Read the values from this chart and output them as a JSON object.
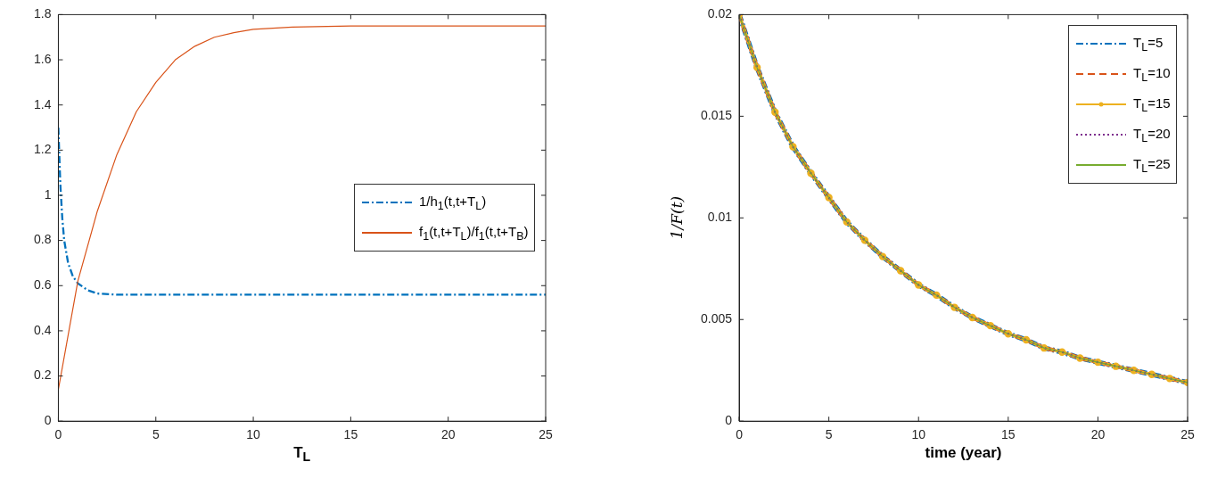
{
  "chart_data": [
    {
      "type": "line",
      "xlabel": "T$_{L}$",
      "xlim": [
        0,
        25
      ],
      "xticks": [
        0,
        5,
        10,
        15,
        20,
        25
      ],
      "ylim": [
        0,
        1.8
      ],
      "yticks": [
        0,
        0.2,
        0.4,
        0.6,
        0.8,
        1,
        1.2,
        1.4,
        1.6,
        1.8
      ],
      "grid": false,
      "legend": "right",
      "marker": "none",
      "series": [
        {
          "name": "1/h$_{1}$(t,t+T$_{L}$)",
          "color": "#0072bd",
          "line_style": "dashdot",
          "x": [
            0,
            0.1,
            0.2,
            0.3,
            0.5,
            0.75,
            1,
            1.5,
            2,
            3,
            25
          ],
          "values": [
            1.3,
            1.05,
            0.9,
            0.8,
            0.7,
            0.64,
            0.61,
            0.58,
            0.565,
            0.56,
            0.56
          ]
        },
        {
          "name": "f$_{1}$(t,t+T$_{L}$)/f$_{1}$(t,t+T$_{B}$)",
          "color": "#d95319",
          "line_style": "solid",
          "x": [
            0,
            1,
            2,
            3,
            4,
            5,
            6,
            7,
            8,
            9,
            10,
            12,
            15,
            25
          ],
          "values": [
            0.14,
            0.62,
            0.93,
            1.18,
            1.37,
            1.5,
            1.6,
            1.66,
            1.7,
            1.72,
            1.735,
            1.745,
            1.75,
            1.75
          ]
        }
      ]
    },
    {
      "type": "line",
      "xlabel": "time (year)",
      "ylabel": "1/F(t)",
      "xlim": [
        0,
        25
      ],
      "xticks": [
        0,
        5,
        10,
        15,
        20,
        25
      ],
      "ylim": [
        0,
        0.02
      ],
      "yticks": [
        0,
        0.005,
        0.01,
        0.015,
        0.02
      ],
      "grid": false,
      "legend": "top right",
      "x": [
        0,
        1,
        2,
        3,
        4,
        5,
        6,
        7,
        8,
        9,
        10,
        11,
        12,
        13,
        14,
        15,
        16,
        17,
        18,
        19,
        20,
        21,
        22,
        23,
        24,
        25
      ],
      "series": [
        {
          "name": "T$_{L}$=5",
          "color": "#0072bd",
          "line_style": "dashdot",
          "marker": "none",
          "values": [
            0.02,
            0.0174,
            0.0152,
            0.0135,
            0.0122,
            0.011,
            0.0098,
            0.0089,
            0.0081,
            0.0074,
            0.0067,
            0.0062,
            0.0056,
            0.0051,
            0.0047,
            0.0043,
            0.004,
            0.0036,
            0.0034,
            0.0031,
            0.0029,
            0.0027,
            0.0025,
            0.0023,
            0.0021,
            0.0019
          ]
        },
        {
          "name": "T$_{L}$=10",
          "color": "#d95319",
          "line_style": "dashed",
          "marker": "none",
          "values": [
            0.02,
            0.0174,
            0.0152,
            0.0135,
            0.0122,
            0.011,
            0.0098,
            0.0089,
            0.0081,
            0.0074,
            0.0067,
            0.0062,
            0.0056,
            0.0051,
            0.0047,
            0.0043,
            0.004,
            0.0036,
            0.0034,
            0.0031,
            0.0029,
            0.0027,
            0.0025,
            0.0023,
            0.0021,
            0.0019
          ]
        },
        {
          "name": "T$_{L}$=15",
          "color": "#edb120",
          "line_style": "solid",
          "marker": "circle",
          "values": [
            0.02,
            0.0174,
            0.0152,
            0.0135,
            0.0122,
            0.011,
            0.0098,
            0.0089,
            0.0081,
            0.0074,
            0.0067,
            0.0062,
            0.0056,
            0.0051,
            0.0047,
            0.0043,
            0.004,
            0.0036,
            0.0034,
            0.0031,
            0.0029,
            0.0027,
            0.0025,
            0.0023,
            0.0021,
            0.0019
          ]
        },
        {
          "name": "T$_{L}$=20",
          "color": "#7e2f8e",
          "line_style": "dotted",
          "marker": "none",
          "values": [
            0.02,
            0.0174,
            0.0152,
            0.0135,
            0.0122,
            0.011,
            0.0098,
            0.0089,
            0.0081,
            0.0074,
            0.0067,
            0.0062,
            0.0056,
            0.0051,
            0.0047,
            0.0043,
            0.004,
            0.0036,
            0.0034,
            0.0031,
            0.0029,
            0.0027,
            0.0025,
            0.0023,
            0.0021,
            0.0019
          ]
        },
        {
          "name": "T$_{L}$=25",
          "color": "#77ac30",
          "line_style": "solid",
          "marker": "none",
          "values": [
            0.02,
            0.0174,
            0.0152,
            0.0135,
            0.0122,
            0.011,
            0.0098,
            0.0089,
            0.0081,
            0.0074,
            0.0067,
            0.0062,
            0.0056,
            0.0051,
            0.0047,
            0.0043,
            0.004,
            0.0036,
            0.0034,
            0.0031,
            0.0029,
            0.0027,
            0.0025,
            0.0023,
            0.0021,
            0.0019
          ]
        }
      ]
    }
  ]
}
